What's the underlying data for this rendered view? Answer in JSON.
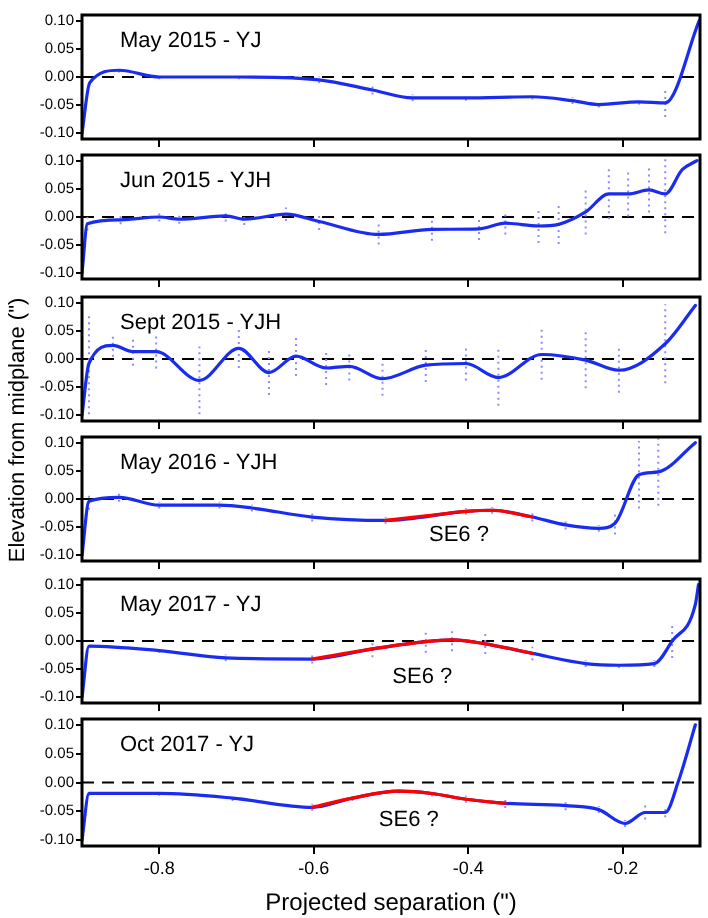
{
  "chart_data": [
    {
      "type": "line",
      "title": "May 2015 - YJ",
      "tick_labels": "y",
      "marker": "none",
      "line_style": "solid",
      "xlim": [
        -0.9,
        -0.1
      ],
      "ylim": [
        -0.11,
        0.11
      ],
      "xticks": [
        -0.8,
        -0.6,
        -0.4,
        -0.2
      ],
      "yticks": [
        {
          "value": -0.1,
          "label": "-0.10"
        },
        {
          "value": -0.05,
          "label": "-0.05"
        },
        {
          "value": 0,
          "label": "0.00"
        },
        {
          "value": 0.05,
          "label": "0.05"
        },
        {
          "value": 0.1,
          "label": "0.10"
        }
      ],
      "ref_lines": [
        {
          "axis": "y",
          "value": 0,
          "color": "#000000",
          "line_style": "dashed"
        }
      ],
      "series": [
        {
          "color": "#1a2cf0",
          "x": [
            -0.9,
            -0.89,
            -0.852,
            -0.8,
            -0.697,
            -0.593,
            -0.524,
            -0.472,
            -0.403,
            -0.317,
            -0.265,
            -0.231,
            -0.179,
            -0.145,
            -0.101
          ],
          "values": [
            -0.1,
            -0.01,
            0.012,
            0,
            0,
            -0.005,
            -0.023,
            -0.037,
            -0.037,
            -0.035,
            -0.042,
            -0.049,
            -0.044,
            -0.046,
            0.1
          ],
          "errors": [
            null,
            0.005,
            0.004,
            0.004,
            0.004,
            0.006,
            0.008,
            0.006,
            0.005,
            0.005,
            0.006,
            0.005,
            0.005,
            0.025,
            null
          ]
        }
      ]
    },
    {
      "type": "line",
      "title": "Jun 2015 - YJH",
      "tick_labels": "y",
      "marker": "none",
      "line_style": "solid",
      "xlim": [
        -0.9,
        -0.1
      ],
      "ylim": [
        -0.11,
        0.11
      ],
      "xticks": [
        -0.8,
        -0.6,
        -0.4,
        -0.2
      ],
      "yticks": [
        {
          "value": -0.1,
          "label": "-0.10"
        },
        {
          "value": -0.05,
          "label": "-0.05"
        },
        {
          "value": 0,
          "label": "0.00"
        },
        {
          "value": 0.05,
          "label": "0.05"
        },
        {
          "value": 0.1,
          "label": "0.10"
        }
      ],
      "ref_lines": [
        {
          "axis": "y",
          "value": 0,
          "color": "#000000",
          "line_style": "dashed"
        }
      ],
      "series": [
        {
          "color": "#1a2cf0",
          "x": [
            -0.9,
            -0.893,
            -0.85,
            -0.8,
            -0.774,
            -0.714,
            -0.69,
            -0.636,
            -0.593,
            -0.516,
            -0.447,
            -0.386,
            -0.352,
            -0.309,
            -0.283,
            -0.248,
            -0.218,
            -0.193,
            -0.166,
            -0.145,
            -0.123,
            -0.104
          ],
          "values": [
            -0.1,
            -0.012,
            -0.005,
            0,
            -0.004,
            0.002,
            -0.004,
            0.005,
            -0.008,
            -0.031,
            -0.022,
            -0.021,
            -0.011,
            -0.016,
            -0.013,
            0.009,
            0.041,
            0.041,
            0.048,
            0.041,
            0.084,
            0.1
          ],
          "errors": [
            null,
            0.012,
            0.008,
            0.008,
            0.008,
            0.01,
            0.01,
            0.012,
            0.015,
            0.018,
            0.02,
            0.02,
            0.02,
            0.03,
            0.035,
            0.04,
            0.045,
            0.04,
            0.04,
            0.07,
            null,
            null
          ]
        }
      ]
    },
    {
      "type": "line",
      "title": "Sept 2015 - YJH",
      "ylabel": "Elevation from midplane (\")",
      "tick_labels": "y",
      "marker": "none",
      "line_style": "solid",
      "xlim": [
        -0.9,
        -0.1
      ],
      "ylim": [
        -0.11,
        0.11
      ],
      "xticks": [
        -0.8,
        -0.6,
        -0.4,
        -0.2
      ],
      "yticks": [
        {
          "value": -0.1,
          "label": "-0.10"
        },
        {
          "value": -0.05,
          "label": "-0.05"
        },
        {
          "value": 0,
          "label": "0.00"
        },
        {
          "value": 0.05,
          "label": "0.05"
        },
        {
          "value": 0.1,
          "label": "0.10"
        }
      ],
      "ref_lines": [
        {
          "axis": "y",
          "value": 0,
          "color": "#000000",
          "line_style": "dashed"
        }
      ],
      "series": [
        {
          "color": "#1a2cf0",
          "x": [
            -0.9,
            -0.891,
            -0.86,
            -0.834,
            -0.804,
            -0.748,
            -0.697,
            -0.658,
            -0.623,
            -0.584,
            -0.554,
            -0.511,
            -0.455,
            -0.403,
            -0.361,
            -0.305,
            -0.248,
            -0.205,
            -0.145,
            -0.106
          ],
          "values": [
            -0.1,
            -0.008,
            0.024,
            0.013,
            0.013,
            -0.038,
            0.019,
            -0.024,
            0.005,
            -0.016,
            -0.013,
            -0.035,
            -0.011,
            -0.008,
            -0.033,
            0.008,
            -0.002,
            -0.02,
            0.027,
            0.095
          ],
          "errors": [
            null,
            0.09,
            0.02,
            0.025,
            0.03,
            0.06,
            0.035,
            0.04,
            0.035,
            0.03,
            0.025,
            0.03,
            0.03,
            0.03,
            0.05,
            0.045,
            0.05,
            0.04,
            0.07,
            null
          ]
        }
      ]
    },
    {
      "type": "line",
      "title": "May 2016 - YJH",
      "tick_labels": "y",
      "marker": "none",
      "line_style": "solid",
      "xlim": [
        -0.9,
        -0.1
      ],
      "ylim": [
        -0.11,
        0.11
      ],
      "xticks": [
        -0.8,
        -0.6,
        -0.4,
        -0.2
      ],
      "yticks": [
        {
          "value": -0.1,
          "label": "-0.10"
        },
        {
          "value": -0.05,
          "label": "-0.05"
        },
        {
          "value": 0,
          "label": "0.00"
        },
        {
          "value": 0.05,
          "label": "0.05"
        },
        {
          "value": 0.1,
          "label": "0.10"
        }
      ],
      "ref_lines": [
        {
          "axis": "y",
          "value": 0,
          "color": "#000000",
          "line_style": "dashed"
        }
      ],
      "annotations": [
        "SE6 ?"
      ],
      "series": [
        {
          "color": "#1a2cf0",
          "x": [
            -0.9,
            -0.891,
            -0.852,
            -0.8,
            -0.722,
            -0.68,
            -0.602,
            -0.507,
            -0.403,
            -0.369,
            -0.317,
            -0.274,
            -0.231,
            -0.21,
            -0.179,
            -0.154,
            -0.106
          ],
          "values": [
            -0.1,
            -0.004,
            0.003,
            -0.011,
            -0.011,
            -0.016,
            -0.032,
            -0.038,
            -0.022,
            -0.02,
            -0.032,
            -0.046,
            -0.052,
            -0.043,
            0.043,
            0.048,
            0.1
          ],
          "errors": [
            null,
            0.015,
            0.008,
            0.006,
            0.006,
            0.006,
            0.008,
            0.006,
            0.006,
            0.006,
            0.008,
            0.008,
            0.006,
            0.02,
            0.06,
            0.06,
            null
          ]
        },
        {
          "color": "#ff0000",
          "x": [
            -0.507,
            -0.455,
            -0.403,
            -0.369,
            -0.317
          ],
          "values": [
            -0.038,
            -0.03,
            -0.022,
            -0.02,
            -0.032
          ]
        }
      ]
    },
    {
      "type": "line",
      "title": "May 2017 - YJ",
      "tick_labels": "y",
      "marker": "none",
      "line_style": "solid",
      "xlim": [
        -0.9,
        -0.1
      ],
      "ylim": [
        -0.11,
        0.11
      ],
      "xticks": [
        -0.8,
        -0.6,
        -0.4,
        -0.2
      ],
      "yticks": [
        {
          "value": -0.1,
          "label": "-0.10"
        },
        {
          "value": -0.05,
          "label": "-0.05"
        },
        {
          "value": 0,
          "label": "0.00"
        },
        {
          "value": 0.05,
          "label": "0.05"
        },
        {
          "value": 0.1,
          "label": "0.10"
        }
      ],
      "ref_lines": [
        {
          "axis": "y",
          "value": 0,
          "color": "#000000",
          "line_style": "dashed"
        }
      ],
      "annotations": [
        "SE6 ?"
      ],
      "series": [
        {
          "color": "#1a2cf0",
          "x": [
            -0.9,
            -0.891,
            -0.8,
            -0.714,
            -0.602,
            -0.524,
            -0.455,
            -0.421,
            -0.378,
            -0.317,
            -0.248,
            -0.205,
            -0.159,
            -0.136,
            -0.106,
            -0.102
          ],
          "values": [
            -0.1,
            -0.009,
            -0.017,
            -0.03,
            -0.032,
            -0.014,
            -0.001,
            0.002,
            -0.005,
            -0.022,
            -0.04,
            -0.043,
            -0.04,
            0,
            0.065,
            0.1
          ],
          "errors": [
            null,
            0.004,
            0.004,
            0.006,
            0.008,
            0.015,
            0.02,
            0.02,
            0.018,
            0.012,
            0.006,
            0.005,
            0.006,
            0.03,
            null,
            null
          ]
        },
        {
          "color": "#ff0000",
          "x": [
            -0.602,
            -0.524,
            -0.455,
            -0.421,
            -0.378,
            -0.317
          ],
          "values": [
            -0.032,
            -0.014,
            -0.001,
            0.002,
            -0.005,
            -0.022
          ]
        }
      ]
    },
    {
      "type": "line",
      "title": "Oct 2017 - YJ",
      "xlabel": "Projected separation (\")",
      "marker": "none",
      "line_style": "solid",
      "xlim": [
        -0.9,
        -0.1
      ],
      "ylim": [
        -0.11,
        0.11
      ],
      "xticks": [
        -0.8,
        -0.6,
        -0.4,
        -0.2
      ],
      "yticks": [
        {
          "value": -0.1,
          "label": "-0.10"
        },
        {
          "value": -0.05,
          "label": "-0.05"
        },
        {
          "value": 0,
          "label": "0.00"
        },
        {
          "value": 0.05,
          "label": "0.05"
        },
        {
          "value": 0.1,
          "label": "0.10"
        }
      ],
      "ref_lines": [
        {
          "axis": "y",
          "value": 0,
          "color": "#000000",
          "line_style": "dashed"
        }
      ],
      "annotations": [
        "SE6 ?"
      ],
      "series": [
        {
          "color": "#1a2cf0",
          "x": [
            -0.9,
            -0.891,
            -0.8,
            -0.705,
            -0.602,
            -0.55,
            -0.49,
            -0.447,
            -0.403,
            -0.352,
            -0.274,
            -0.231,
            -0.197,
            -0.171,
            -0.145,
            -0.128,
            -0.106
          ],
          "values": [
            -0.1,
            -0.019,
            -0.019,
            -0.027,
            -0.043,
            -0.027,
            -0.015,
            -0.019,
            -0.029,
            -0.036,
            -0.04,
            -0.047,
            -0.071,
            -0.052,
            -0.052,
            0.002,
            0.1
          ],
          "errors": [
            null,
            0.004,
            0.004,
            0.005,
            0.006,
            0.005,
            0.004,
            0.005,
            0.006,
            0.008,
            0.008,
            0.006,
            0.006,
            0.012,
            0.008,
            null,
            null
          ]
        },
        {
          "color": "#ff0000",
          "x": [
            -0.602,
            -0.55,
            -0.49,
            -0.447,
            -0.403,
            -0.352
          ],
          "values": [
            -0.043,
            -0.027,
            -0.015,
            -0.019,
            -0.029,
            -0.036
          ]
        }
      ]
    }
  ]
}
